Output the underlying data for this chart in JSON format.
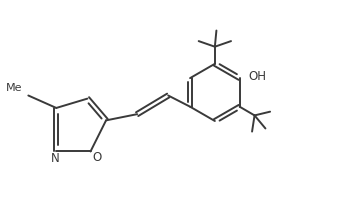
{
  "background_color": "#ffffff",
  "line_color": "#3a3a3a",
  "line_width": 1.4,
  "text_color": "#3a3a3a",
  "font_size_labels": 8.5,
  "xlim": [
    -0.5,
    10.5
  ],
  "ylim": [
    -0.5,
    6.5
  ]
}
